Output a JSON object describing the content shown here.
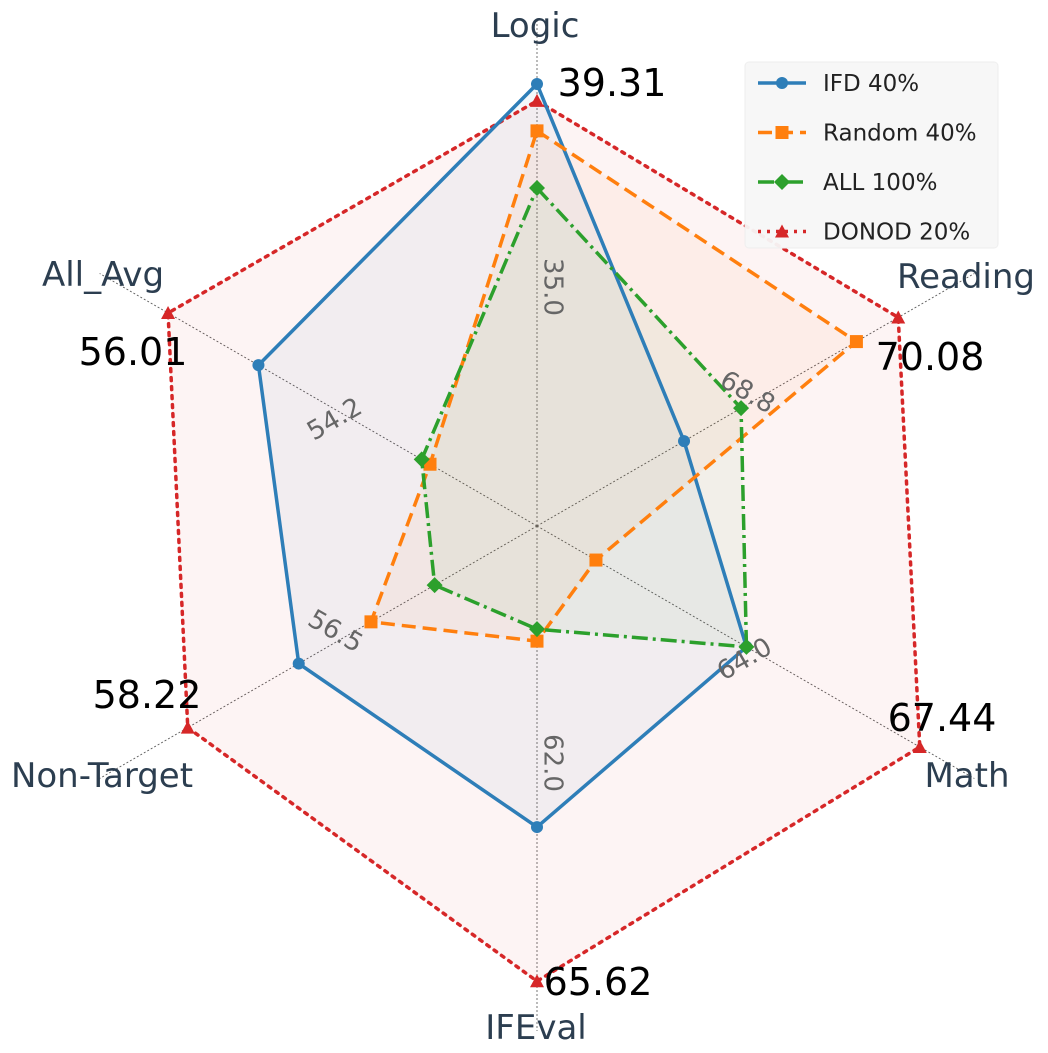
{
  "chart_data": {
    "type": "radar",
    "title": "",
    "axes": [
      "Logic",
      "Reading",
      "Math",
      "IFEval",
      "Non-Target",
      "All_Avg"
    ],
    "axis_ranges": [
      [
        29.88,
        39.31
      ],
      [
        67.23,
        70.25
      ],
      [
        59.91,
        67.44
      ],
      [
        58.03,
        65.4
      ],
      [
        54.16,
        58.61
      ],
      [
        52.01,
        56.16
      ]
    ],
    "tick_labels": [
      "35.0",
      "68.8",
      "64.0",
      "62.0",
      "56.5",
      "54.2"
    ],
    "tick_values": [
      35.0,
      68.8,
      64.0,
      62.0,
      56.5,
      54.2
    ],
    "max_labels": [
      "39.31",
      "70.08",
      "67.44",
      "65.62",
      "58.22",
      "56.01"
    ],
    "legend_position": "top-right",
    "grid": true,
    "series": [
      {
        "name": "IFD 40%",
        "color": "#2e7eb8",
        "values": [
          39.31,
          68.39,
          64.03,
          63.05,
          56.93,
          55.03
        ]
      },
      {
        "name": "Random 40%",
        "color": "#ff7f0e",
        "values": [
          38.31,
          69.75,
          61.07,
          59.95,
          56.09,
          53.17
        ]
      },
      {
        "name": "ALL 100%",
        "color": "#2ca02c",
        "values": [
          37.09,
          68.84,
          64.03,
          59.75,
          55.35,
          53.26
        ]
      },
      {
        "name": "DONOD 20%",
        "color": "#d62728",
        "values": [
          38.95,
          70.08,
          67.44,
          65.62,
          58.22,
          56.01
        ]
      }
    ]
  }
}
